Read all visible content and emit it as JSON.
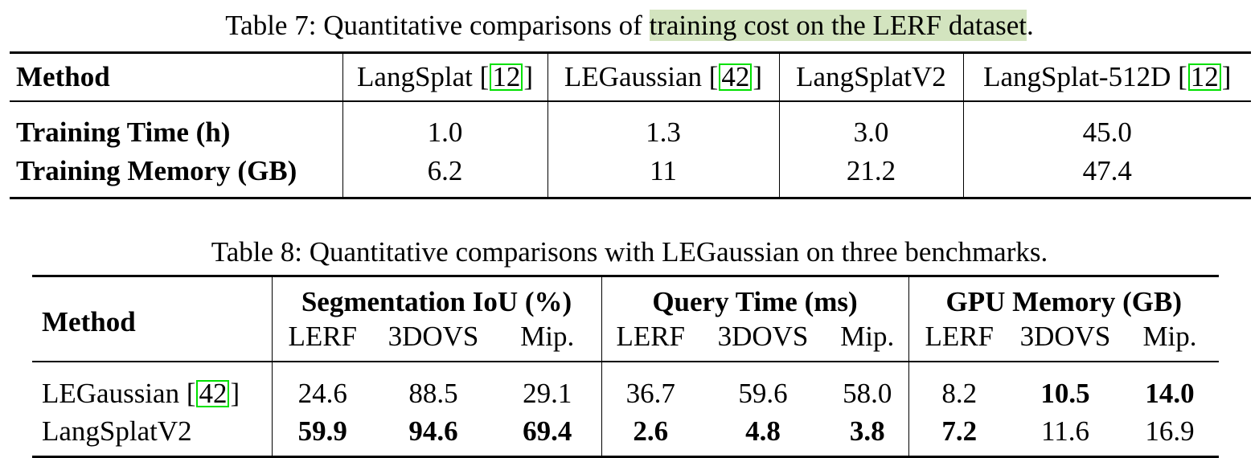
{
  "table7": {
    "caption_prefix": "Table 7: Quantitative comparisons of ",
    "caption_highlight": "training cost on the LERF dataset",
    "caption_suffix": ".",
    "method_header": "Method",
    "columns": [
      {
        "name": "LangSplat [",
        "ref": "12",
        "close": "]"
      },
      {
        "name": "LEGaussian [",
        "ref": "42",
        "close": "]"
      },
      {
        "name": "LangSplatV2",
        "ref": "",
        "close": ""
      },
      {
        "name": "LangSplat-512D [",
        "ref": "12",
        "close": "]"
      }
    ],
    "rows": [
      {
        "label": "Training Time (h)",
        "values": [
          "1.0",
          "1.3",
          "3.0",
          "45.0"
        ]
      },
      {
        "label": "Training Memory (GB)",
        "values": [
          "6.2",
          "11",
          "21.2",
          "47.4"
        ]
      }
    ]
  },
  "table8": {
    "caption": "Table 8: Quantitative comparisons with LEGaussian on three benchmarks.",
    "method_header": "Method",
    "groups": [
      "Segmentation IoU (%)",
      "Query Time (ms)",
      "GPU Memory (GB)"
    ],
    "subheaders": [
      "LERF",
      "3DOVS",
      "Mip."
    ],
    "rows": [
      {
        "label": "LEGaussian [",
        "ref": "42",
        "close": "]",
        "values": [
          "24.6",
          "88.5",
          "29.1",
          "36.7",
          "59.6",
          "58.0",
          "8.2",
          "10.5",
          "14.0"
        ],
        "bold": [
          false,
          false,
          false,
          false,
          false,
          false,
          false,
          true,
          true
        ]
      },
      {
        "label": "LangSplatV2",
        "ref": "",
        "close": "",
        "values": [
          "59.9",
          "94.6",
          "69.4",
          "2.6",
          "4.8",
          "3.8",
          "7.2",
          "11.6",
          "16.9"
        ],
        "bold": [
          true,
          true,
          true,
          true,
          true,
          true,
          true,
          false,
          false
        ]
      }
    ]
  }
}
